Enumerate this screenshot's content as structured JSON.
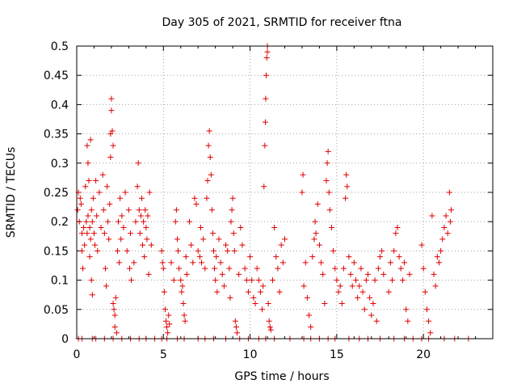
{
  "chart_data": {
    "type": "scatter",
    "title": "Day 305 of 2021, SRMTID for receiver ftna",
    "xlabel": "GPS time / hours",
    "ylabel": "SRMTID / TECUs",
    "xlim": [
      0,
      24
    ],
    "ylim": [
      0,
      0.5
    ],
    "xticks": [
      "0",
      "5",
      "10",
      "15",
      "20"
    ],
    "yticks": [
      "0",
      "0.05",
      "0.1",
      "0.15",
      "0.2",
      "0.25",
      "0.3",
      "0.35",
      "0.4",
      "0.45",
      "0.5"
    ],
    "grid": true,
    "marker": "+",
    "color": "#e00000",
    "series": [
      {
        "points": [
          [
            0.05,
            0.22
          ],
          [
            0.1,
            0.25
          ],
          [
            0.15,
            0.2
          ],
          [
            0.2,
            0.24
          ],
          [
            0.25,
            0.23
          ],
          [
            0.3,
            0.18
          ],
          [
            0.3,
            0.15
          ],
          [
            0.35,
            0.12
          ],
          [
            0.4,
            0.19
          ],
          [
            0.45,
            0.16
          ],
          [
            0.5,
            0.26
          ],
          [
            0.55,
            0.2
          ],
          [
            0.6,
            0.18
          ],
          [
            0.6,
            0.33
          ],
          [
            0.65,
            0.3
          ],
          [
            0.65,
            0.21
          ],
          [
            0.7,
            0.27
          ],
          [
            0.75,
            0.19
          ],
          [
            0.75,
            0.14
          ],
          [
            0.8,
            0.17
          ],
          [
            0.8,
            0.34
          ],
          [
            0.85,
            0.22
          ],
          [
            0.85,
            0.1
          ],
          [
            0.9,
            0.2
          ],
          [
            0.9,
            0.075
          ],
          [
            0.95,
            0.24
          ],
          [
            1.0,
            0.18
          ],
          [
            1.05,
            0.16
          ],
          [
            1.1,
            0.27
          ],
          [
            1.15,
            0.21
          ],
          [
            1.2,
            0.15
          ],
          [
            1.3,
            0.25
          ],
          [
            1.4,
            0.19
          ],
          [
            1.5,
            0.28
          ],
          [
            1.55,
            0.22
          ],
          [
            1.6,
            0.18
          ],
          [
            1.65,
            0.12
          ],
          [
            1.7,
            0.09
          ],
          [
            1.75,
            0.26
          ],
          [
            1.8,
            0.2
          ],
          [
            1.85,
            0.17
          ],
          [
            1.9,
            0.23
          ],
          [
            1.95,
            0.31
          ],
          [
            1.95,
            0.35
          ],
          [
            2.0,
            0.41
          ],
          [
            2.0,
            0.39
          ],
          [
            2.05,
            0.355
          ],
          [
            2.1,
            0.33
          ],
          [
            2.1,
            0.06
          ],
          [
            2.15,
            0.05
          ],
          [
            2.2,
            0.04
          ],
          [
            2.2,
            0.02
          ],
          [
            2.25,
            0.07
          ],
          [
            2.3,
            0.01
          ],
          [
            2.35,
            0.15
          ],
          [
            2.4,
            0.2
          ],
          [
            2.45,
            0.13
          ],
          [
            2.5,
            0.24
          ],
          [
            2.55,
            0.17
          ],
          [
            2.6,
            0.21
          ],
          [
            2.7,
            0.19
          ],
          [
            2.8,
            0.25
          ],
          [
            2.9,
            0.15
          ],
          [
            3.0,
            0.22
          ],
          [
            3.05,
            0.12
          ],
          [
            3.1,
            0.18
          ],
          [
            3.15,
            0.1
          ],
          [
            3.3,
            0.13
          ],
          [
            3.4,
            0.2
          ],
          [
            3.5,
            0.26
          ],
          [
            3.55,
            0.3
          ],
          [
            3.6,
            0.22
          ],
          [
            3.65,
            0.18
          ],
          [
            3.7,
            0.21
          ],
          [
            3.75,
            0.24
          ],
          [
            3.8,
            0.16
          ],
          [
            3.85,
            0.2
          ],
          [
            3.9,
            0.14
          ],
          [
            3.95,
            0.22
          ],
          [
            4.0,
            0.19
          ],
          [
            4.05,
            0.17
          ],
          [
            4.1,
            0.21
          ],
          [
            4.15,
            0.11
          ],
          [
            4.2,
            0.25
          ],
          [
            4.3,
            0.16
          ],
          [
            4.9,
            0.15
          ],
          [
            4.95,
            0.13
          ],
          [
            5.0,
            0.12
          ],
          [
            5.05,
            0.08
          ],
          [
            5.1,
            0.05
          ],
          [
            5.15,
            0.03
          ],
          [
            5.2,
            0.02
          ],
          [
            5.25,
            0.01
          ],
          [
            5.3,
            0.04
          ],
          [
            5.35,
            0.025
          ],
          [
            5.45,
            0.13
          ],
          [
            5.6,
            0.1
          ],
          [
            5.7,
            0.2
          ],
          [
            5.75,
            0.22
          ],
          [
            5.8,
            0.17
          ],
          [
            5.85,
            0.15
          ],
          [
            5.9,
            0.12
          ],
          [
            6.0,
            0.1
          ],
          [
            6.05,
            0.08
          ],
          [
            6.1,
            0.09
          ],
          [
            6.15,
            0.06
          ],
          [
            6.2,
            0.04
          ],
          [
            6.25,
            0.03
          ],
          [
            6.3,
            0.14
          ],
          [
            6.35,
            0.11
          ],
          [
            6.5,
            0.2
          ],
          [
            6.6,
            0.16
          ],
          [
            6.7,
            0.13
          ],
          [
            6.8,
            0.24
          ],
          [
            6.9,
            0.23
          ],
          [
            7.0,
            0.15
          ],
          [
            7.1,
            0.14
          ],
          [
            7.15,
            0.19
          ],
          [
            7.2,
            0.13
          ],
          [
            7.3,
            0.17
          ],
          [
            7.4,
            0.12
          ],
          [
            7.5,
            0.24
          ],
          [
            7.55,
            0.27
          ],
          [
            7.6,
            0.33
          ],
          [
            7.65,
            0.355
          ],
          [
            7.7,
            0.31
          ],
          [
            7.75,
            0.28
          ],
          [
            7.8,
            0.22
          ],
          [
            7.85,
            0.18
          ],
          [
            7.9,
            0.15
          ],
          [
            7.95,
            0.12
          ],
          [
            8.0,
            0.1
          ],
          [
            8.05,
            0.14
          ],
          [
            8.1,
            0.08
          ],
          [
            8.2,
            0.17
          ],
          [
            8.3,
            0.13
          ],
          [
            8.4,
            0.11
          ],
          [
            8.5,
            0.09
          ],
          [
            8.6,
            0.16
          ],
          [
            8.7,
            0.15
          ],
          [
            8.8,
            0.12
          ],
          [
            8.85,
            0.07
          ],
          [
            8.9,
            0.2
          ],
          [
            8.95,
            0.22
          ],
          [
            9.0,
            0.24
          ],
          [
            9.05,
            0.18
          ],
          [
            9.1,
            0.15
          ],
          [
            9.15,
            0.03
          ],
          [
            9.2,
            0.02
          ],
          [
            9.25,
            0.01
          ],
          [
            9.35,
            0.11
          ],
          [
            9.45,
            0.19
          ],
          [
            9.55,
            0.16
          ],
          [
            9.7,
            0.12
          ],
          [
            9.8,
            0.1
          ],
          [
            9.9,
            0.08
          ],
          [
            10.0,
            0.14
          ],
          [
            10.1,
            0.1
          ],
          [
            10.2,
            0.07
          ],
          [
            10.3,
            0.06
          ],
          [
            10.4,
            0.12
          ],
          [
            10.5,
            0.1
          ],
          [
            10.6,
            0.08
          ],
          [
            10.7,
            0.05
          ],
          [
            10.75,
            0.09
          ],
          [
            10.8,
            0.26
          ],
          [
            10.85,
            0.33
          ],
          [
            10.88,
            0.37
          ],
          [
            10.9,
            0.41
          ],
          [
            10.93,
            0.45
          ],
          [
            10.96,
            0.48
          ],
          [
            11.0,
            0.5
          ],
          [
            11.0,
            0.49
          ],
          [
            11.05,
            0.06
          ],
          [
            11.1,
            0.03
          ],
          [
            11.15,
            0.02
          ],
          [
            11.2,
            0.015
          ],
          [
            11.3,
            0.1
          ],
          [
            11.4,
            0.19
          ],
          [
            11.5,
            0.14
          ],
          [
            11.6,
            0.12
          ],
          [
            11.7,
            0.08
          ],
          [
            11.8,
            0.16
          ],
          [
            11.9,
            0.13
          ],
          [
            12.0,
            0.17
          ],
          [
            13.0,
            0.25
          ],
          [
            13.05,
            0.28
          ],
          [
            13.1,
            0.09
          ],
          [
            13.2,
            0.13
          ],
          [
            13.3,
            0.07
          ],
          [
            13.4,
            0.04
          ],
          [
            13.5,
            0.02
          ],
          [
            13.6,
            0.14
          ],
          [
            13.7,
            0.17
          ],
          [
            13.75,
            0.2
          ],
          [
            13.8,
            0.18
          ],
          [
            13.9,
            0.23
          ],
          [
            14.0,
            0.16
          ],
          [
            14.1,
            0.13
          ],
          [
            14.2,
            0.11
          ],
          [
            14.3,
            0.06
          ],
          [
            14.4,
            0.27
          ],
          [
            14.45,
            0.3
          ],
          [
            14.5,
            0.32
          ],
          [
            14.55,
            0.25
          ],
          [
            14.6,
            0.22
          ],
          [
            14.7,
            0.19
          ],
          [
            14.8,
            0.15
          ],
          [
            14.9,
            0.12
          ],
          [
            15.0,
            0.1
          ],
          [
            15.1,
            0.08
          ],
          [
            15.2,
            0.09
          ],
          [
            15.3,
            0.06
          ],
          [
            15.4,
            0.12
          ],
          [
            15.5,
            0.24
          ],
          [
            15.55,
            0.28
          ],
          [
            15.6,
            0.26
          ],
          [
            15.7,
            0.14
          ],
          [
            15.8,
            0.11
          ],
          [
            15.9,
            0.09
          ],
          [
            16.0,
            0.13
          ],
          [
            16.1,
            0.1
          ],
          [
            16.2,
            0.07
          ],
          [
            16.3,
            0.09
          ],
          [
            16.4,
            0.12
          ],
          [
            16.5,
            0.08
          ],
          [
            16.6,
            0.05
          ],
          [
            16.7,
            0.1
          ],
          [
            16.8,
            0.11
          ],
          [
            16.9,
            0.07
          ],
          [
            17.0,
            0.04
          ],
          [
            17.1,
            0.06
          ],
          [
            17.2,
            0.1
          ],
          [
            17.3,
            0.03
          ],
          [
            17.4,
            0.12
          ],
          [
            17.5,
            0.14
          ],
          [
            17.6,
            0.15
          ],
          [
            17.7,
            0.11
          ],
          [
            18.0,
            0.08
          ],
          [
            18.1,
            0.13
          ],
          [
            18.2,
            0.1
          ],
          [
            18.3,
            0.15
          ],
          [
            18.4,
            0.18
          ],
          [
            18.5,
            0.19
          ],
          [
            18.6,
            0.14
          ],
          [
            18.7,
            0.12
          ],
          [
            18.8,
            0.1
          ],
          [
            18.9,
            0.13
          ],
          [
            19.0,
            0.05
          ],
          [
            19.1,
            0.03
          ],
          [
            19.2,
            0.11
          ],
          [
            19.9,
            0.16
          ],
          [
            20.0,
            0.12
          ],
          [
            20.1,
            0.08
          ],
          [
            20.2,
            0.05
          ],
          [
            20.3,
            0.03
          ],
          [
            20.4,
            0.01
          ],
          [
            20.5,
            0.21
          ],
          [
            20.6,
            0.11
          ],
          [
            20.7,
            0.09
          ],
          [
            20.8,
            0.14
          ],
          [
            20.9,
            0.13
          ],
          [
            21.0,
            0.15
          ],
          [
            21.1,
            0.17
          ],
          [
            21.2,
            0.19
          ],
          [
            21.3,
            0.21
          ],
          [
            21.4,
            0.18
          ],
          [
            21.5,
            0.25
          ],
          [
            21.55,
            0.2
          ],
          [
            21.6,
            0.22
          ],
          [
            0.1,
            0.0
          ],
          [
            0.3,
            0.0
          ],
          [
            0.9,
            0.0
          ],
          [
            1.1,
            0.0
          ],
          [
            1.6,
            0.0
          ],
          [
            2.1,
            0.0
          ],
          [
            2.6,
            0.0
          ],
          [
            3.1,
            0.0
          ],
          [
            3.6,
            0.0
          ],
          [
            4.0,
            0.0
          ],
          [
            4.5,
            0.0
          ],
          [
            4.9,
            0.0
          ],
          [
            5.2,
            0.0
          ],
          [
            5.8,
            0.0
          ],
          [
            6.2,
            0.0
          ],
          [
            7.0,
            0.0
          ],
          [
            7.4,
            0.0
          ],
          [
            7.9,
            0.0
          ],
          [
            8.6,
            0.0
          ],
          [
            9.4,
            0.0
          ],
          [
            9.9,
            0.0
          ],
          [
            10.5,
            0.0
          ],
          [
            10.9,
            0.0
          ],
          [
            11.4,
            0.0
          ],
          [
            12.3,
            0.0
          ],
          [
            13.1,
            0.0
          ],
          [
            13.5,
            0.0
          ],
          [
            14.0,
            0.0
          ],
          [
            14.5,
            0.0
          ],
          [
            14.9,
            0.0
          ],
          [
            15.7,
            0.0
          ],
          [
            16.3,
            0.0
          ],
          [
            16.8,
            0.0
          ],
          [
            17.5,
            0.0
          ],
          [
            18.3,
            0.0
          ],
          [
            18.9,
            0.0
          ],
          [
            19.4,
            0.0
          ],
          [
            19.9,
            0.0
          ],
          [
            20.3,
            0.0
          ],
          [
            21.2,
            0.0
          ],
          [
            21.8,
            0.0
          ],
          [
            22.6,
            0.0
          ]
        ]
      }
    ]
  }
}
